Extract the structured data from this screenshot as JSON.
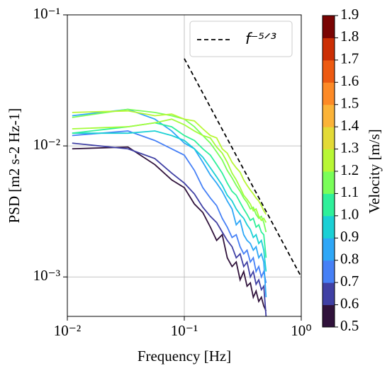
{
  "chart_data": {
    "type": "line",
    "xlabel": "Frequency [Hz]",
    "ylabel": "PSD [m2 s-2 Hz-1]",
    "xscale": "log",
    "yscale": "log",
    "xlim": [
      0.01,
      1
    ],
    "ylim": [
      0.0005,
      0.1
    ],
    "xticks": [
      {
        "value": 0.01,
        "label": "10⁻²"
      },
      {
        "value": 0.1,
        "label": "10⁻¹"
      },
      {
        "value": 1,
        "label": "10⁰"
      }
    ],
    "yticks": [
      {
        "value": 0.001,
        "label": "10⁻³"
      },
      {
        "value": 0.01,
        "label": "10⁻²"
      },
      {
        "value": 0.1,
        "label": "10⁻¹"
      }
    ],
    "grid": true,
    "x": [
      0.011,
      0.033,
      0.056,
      0.078,
      0.1,
      0.122,
      0.144,
      0.167,
      0.189,
      0.211,
      0.233,
      0.256,
      0.278,
      0.3,
      0.322,
      0.344,
      0.367,
      0.389,
      0.411,
      0.433,
      0.456,
      0.478,
      0.5
    ],
    "series": [
      {
        "color": "#30123b",
        "values": [
          0.0095,
          0.0098,
          0.0072,
          0.0055,
          0.0048,
          0.0036,
          0.0031,
          0.0024,
          0.0019,
          0.0021,
          0.0014,
          0.0012,
          0.0013,
          0.00095,
          0.0011,
          0.00085,
          0.0009,
          0.0007,
          0.00078,
          0.00065,
          0.0007,
          0.0006,
          0.00055
        ]
      },
      {
        "color": "#4040a4",
        "values": [
          0.0105,
          0.0095,
          0.008,
          0.0062,
          0.0052,
          0.0043,
          0.0034,
          0.0029,
          0.0026,
          0.0022,
          0.0019,
          0.0017,
          0.0014,
          0.0015,
          0.0012,
          0.0013,
          0.001,
          0.0011,
          0.00088,
          0.00095,
          0.0008,
          0.00085,
          0.0005
        ]
      },
      {
        "color": "#4680f6",
        "values": [
          0.012,
          0.013,
          0.011,
          0.0095,
          0.0085,
          0.0065,
          0.0048,
          0.004,
          0.0035,
          0.0028,
          0.0024,
          0.002,
          0.0021,
          0.0017,
          0.0015,
          0.0016,
          0.0013,
          0.0014,
          0.0011,
          0.0012,
          0.001,
          0.0011,
          0.0009
        ]
      },
      {
        "color": "#2ea7f7",
        "values": [
          0.017,
          0.019,
          0.016,
          0.013,
          0.0105,
          0.0095,
          0.0075,
          0.006,
          0.0052,
          0.0045,
          0.0038,
          0.0033,
          0.0025,
          0.0027,
          0.0021,
          0.0019,
          0.0018,
          0.0016,
          0.0017,
          0.0014,
          0.0015,
          0.0013,
          0.0007
        ]
      },
      {
        "color": "#1bd0d5",
        "values": [
          0.0125,
          0.0125,
          0.013,
          0.012,
          0.011,
          0.0095,
          0.0082,
          0.0068,
          0.0058,
          0.005,
          0.0042,
          0.0038,
          0.0033,
          0.003,
          0.0028,
          0.0025,
          0.0023,
          0.002,
          0.0021,
          0.0018,
          0.0019,
          0.0016,
          0.0011
        ]
      },
      {
        "color": "#2ff09a",
        "values": [
          0.0125,
          0.014,
          0.015,
          0.014,
          0.012,
          0.011,
          0.0095,
          0.0085,
          0.0072,
          0.0062,
          0.0052,
          0.0045,
          0.0042,
          0.0037,
          0.0033,
          0.003,
          0.0027,
          0.0028,
          0.0024,
          0.0025,
          0.0022,
          0.0021,
          0.0014
        ]
      },
      {
        "color": "#7afe59",
        "values": [
          0.0165,
          0.019,
          0.018,
          0.017,
          0.016,
          0.014,
          0.012,
          0.0105,
          0.009,
          0.0078,
          0.0065,
          0.0057,
          0.005,
          0.0045,
          0.004,
          0.0037,
          0.0033,
          0.0034,
          0.003,
          0.0028,
          0.0029,
          0.0026,
          0.0022
        ]
      },
      {
        "color": "#b8f735",
        "values": [
          0.018,
          0.0185,
          0.017,
          0.0175,
          0.016,
          0.0155,
          0.0135,
          0.012,
          0.0115,
          0.0095,
          0.0088,
          0.0075,
          0.0068,
          0.0063,
          0.0055,
          0.005,
          0.0046,
          0.0043,
          0.004,
          0.0038,
          0.0035,
          0.0032,
          0.003
        ]
      },
      {
        "color": "#a4fc3b",
        "values": [
          0.0135,
          0.014,
          0.015,
          0.016,
          0.0145,
          0.013,
          0.012,
          0.0115,
          0.0098,
          0.0088,
          0.0075,
          0.0062,
          0.0055,
          0.0048,
          0.0042,
          0.0039,
          0.0036,
          0.0032,
          0.0033,
          0.0029,
          0.0027,
          0.0028,
          0.0026
        ]
      }
    ],
    "reference": {
      "name": "f⁻⁵ᐟ³",
      "color": "#000000",
      "dashed": true,
      "x": [
        0.1,
        1
      ],
      "values": [
        0.0464,
        0.001
      ]
    },
    "colorbar": {
      "label": "Velocity [m/s]",
      "lim": [
        0.5,
        1.9
      ],
      "ticks": [
        0.5,
        0.6,
        0.7,
        0.8,
        0.9,
        {
          "value": 1,
          "label": "1.0"
        },
        1.1,
        1.2,
        1.3,
        1.4,
        1.5,
        1.6,
        1.7,
        1.8,
        1.9
      ],
      "colors": [
        "#30123b",
        "#4040a4",
        "#4680f6",
        "#2ea7f7",
        "#1bd0d5",
        "#2ff09a",
        "#7afe59",
        "#b8f735",
        "#e3da37",
        "#fbb338",
        "#fd8a26",
        "#ed5a11",
        "#cb2e04",
        "#7a0403"
      ]
    }
  }
}
